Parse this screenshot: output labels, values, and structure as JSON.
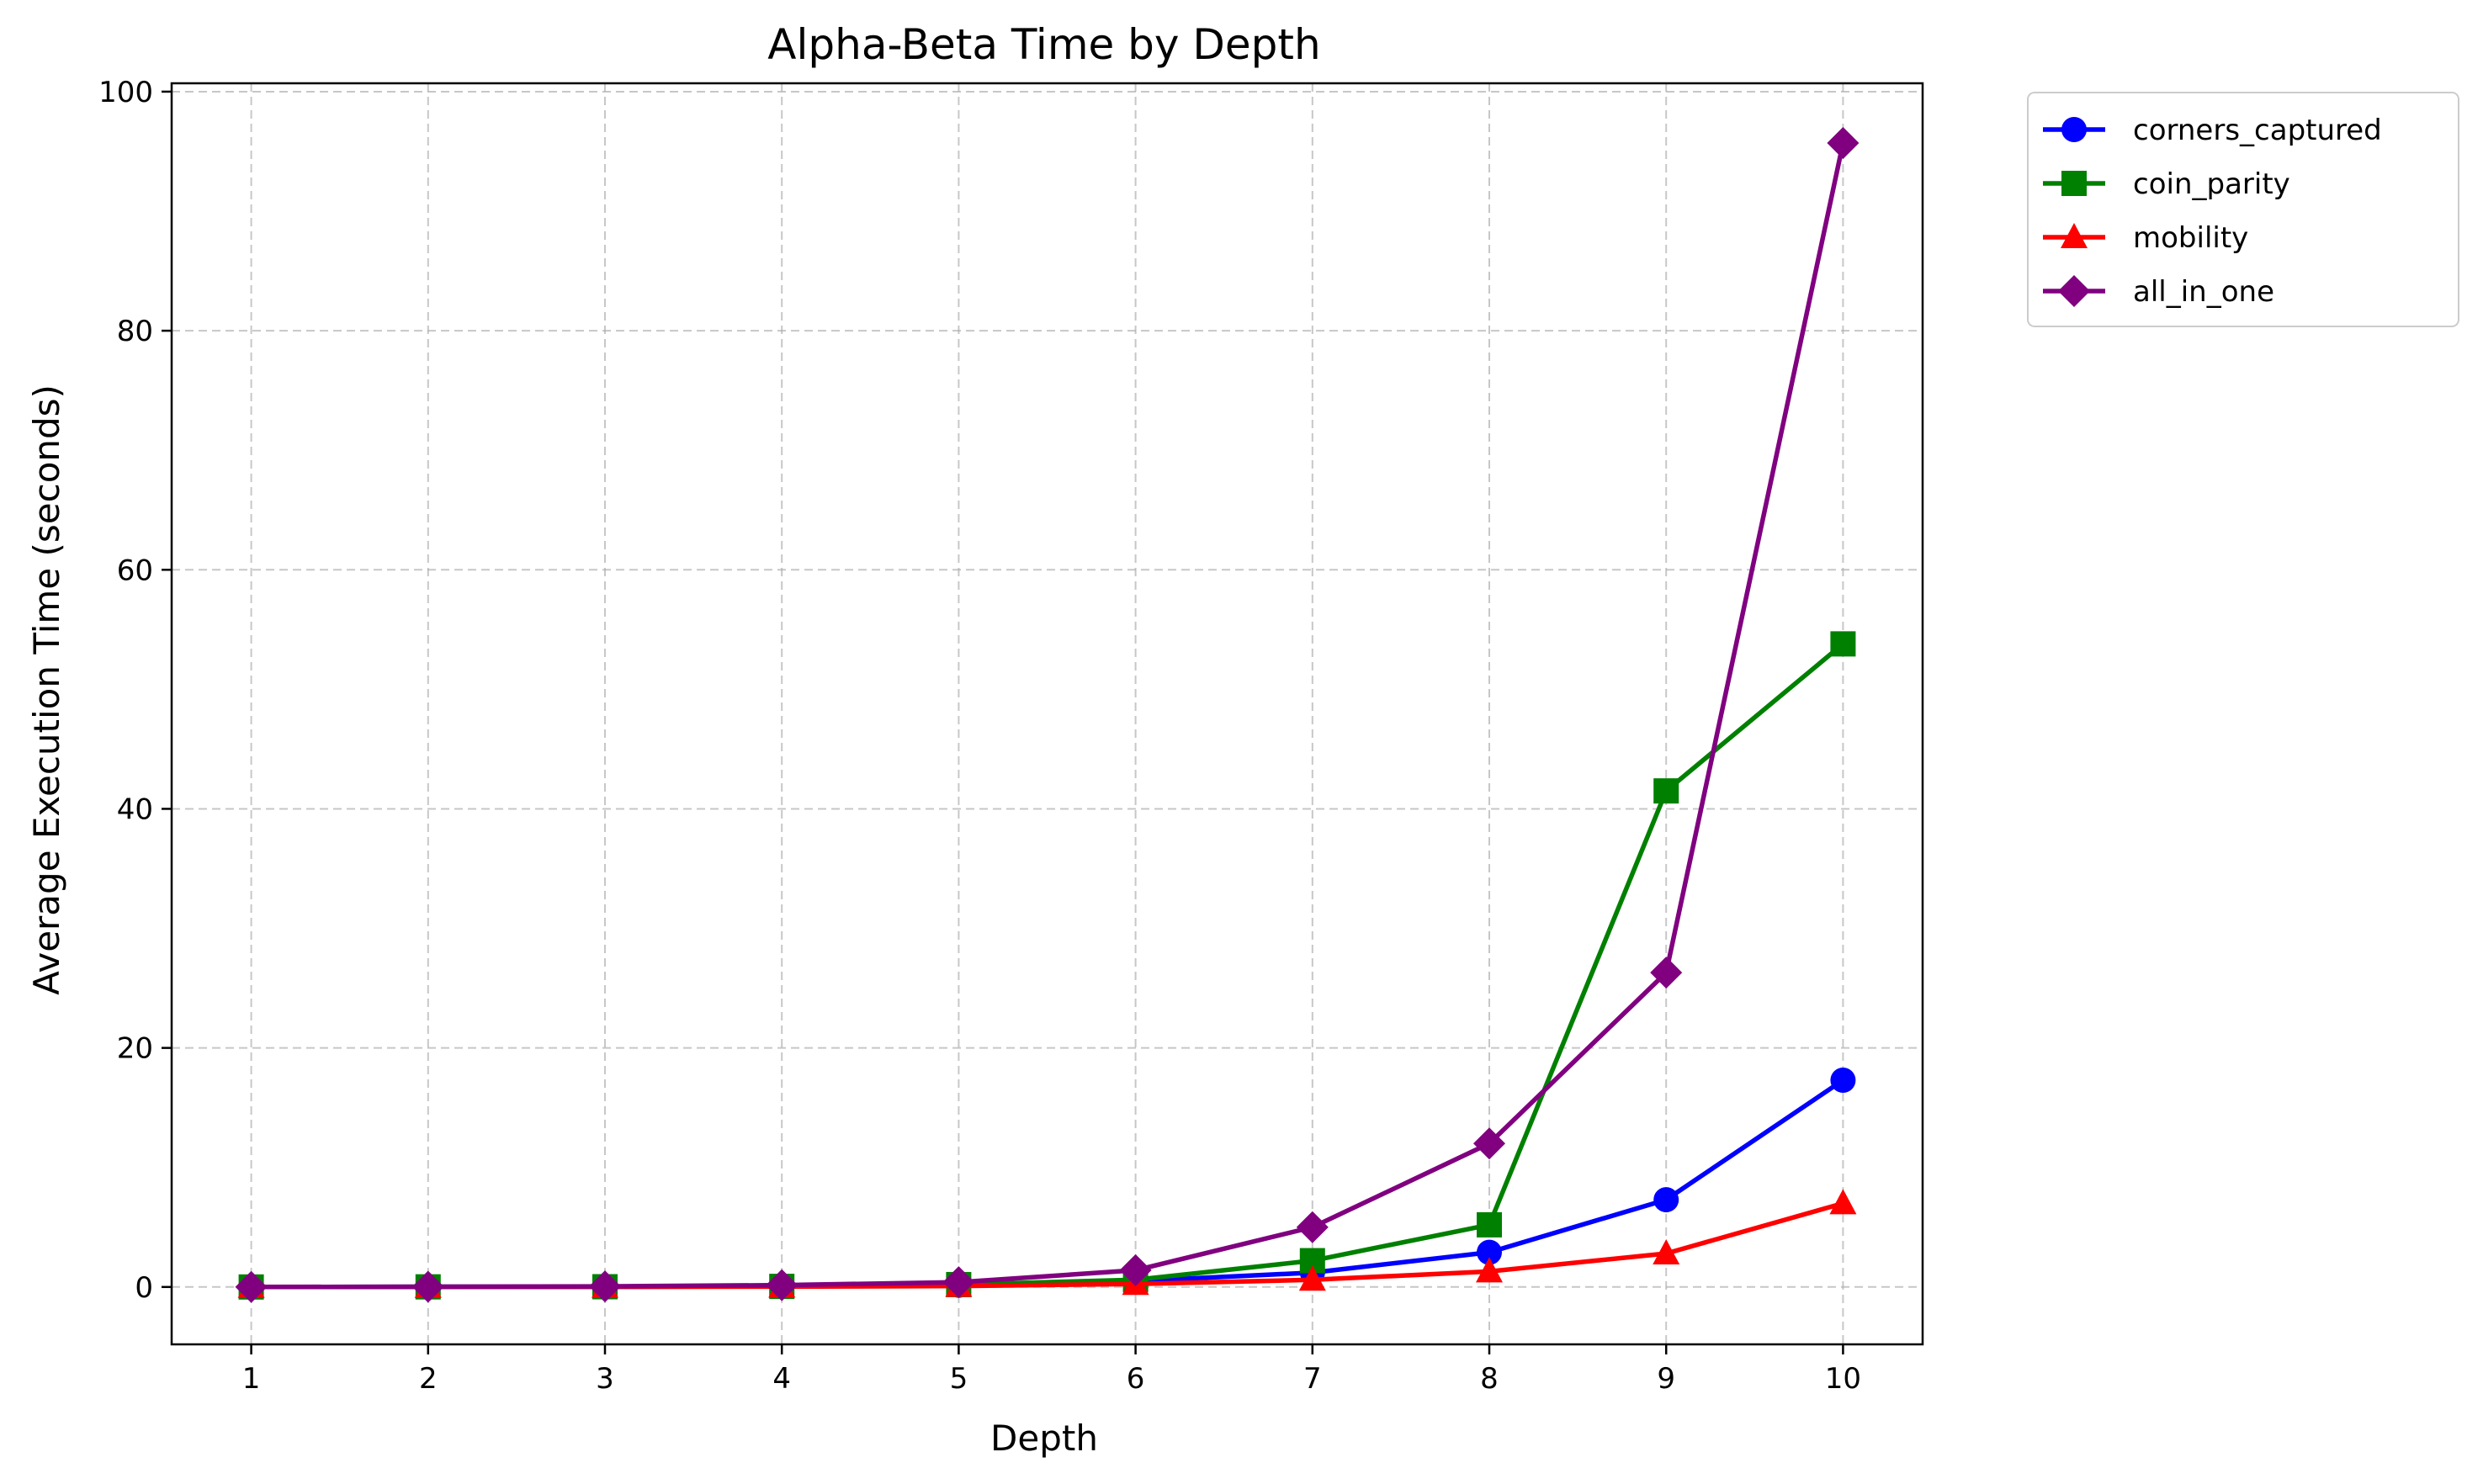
{
  "chart_data": {
    "type": "line",
    "title": "Alpha-Beta Time by Depth",
    "xlabel": "Depth",
    "ylabel": "Average Execution Time (seconds)",
    "x": [
      1,
      2,
      3,
      4,
      5,
      6,
      7,
      8,
      9,
      10
    ],
    "xlim": [
      0.55,
      10.45
    ],
    "ylim": [
      -4.8,
      100.7
    ],
    "yticks": [
      0,
      20,
      40,
      60,
      80,
      100
    ],
    "grid": true,
    "legend_position": "outside-top-right",
    "series": [
      {
        "name": "corners_captured",
        "color": "#0000ff",
        "marker": "circle",
        "values": [
          0.0,
          0.01,
          0.02,
          0.05,
          0.15,
          0.5,
          1.2,
          2.9,
          7.3,
          17.3
        ]
      },
      {
        "name": "coin_parity",
        "color": "#008000",
        "marker": "square",
        "values": [
          0.0,
          0.01,
          0.02,
          0.05,
          0.2,
          0.6,
          2.2,
          5.2,
          41.5,
          53.8
        ]
      },
      {
        "name": "mobility",
        "color": "#ff0000",
        "marker": "triangle",
        "values": [
          0.0,
          0.0,
          0.01,
          0.03,
          0.08,
          0.25,
          0.6,
          1.3,
          2.8,
          7.0
        ]
      },
      {
        "name": "all_in_one",
        "color": "#800080",
        "marker": "diamond",
        "values": [
          0.0,
          0.02,
          0.05,
          0.15,
          0.4,
          1.4,
          5.0,
          12.0,
          26.3,
          95.7
        ]
      }
    ]
  }
}
